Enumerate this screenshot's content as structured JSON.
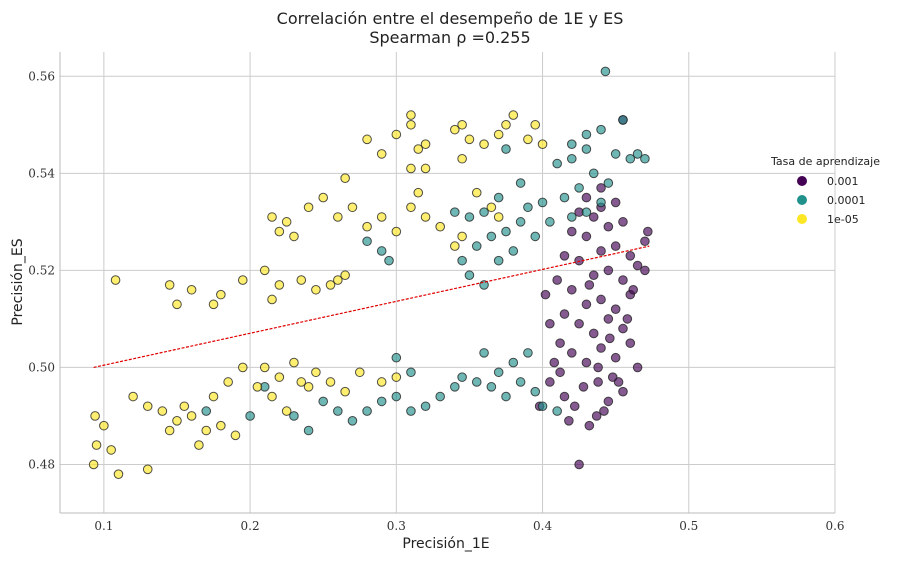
{
  "chart_data": {
    "type": "scatter",
    "title": "Correlación entre el desempeño de 1E y ES",
    "subtitle": "Spearman ρ =0.255",
    "xlabel": "Precisión_1E",
    "ylabel": "Precisión_ES",
    "xlim": [
      0.07,
      0.6
    ],
    "ylim": [
      0.47,
      0.565
    ],
    "xticks": [
      0.1,
      0.2,
      0.3,
      0.4,
      0.5,
      0.6
    ],
    "xtick_labels": [
      "0.1",
      "0.2",
      "0.3",
      "0.4",
      "0.5",
      "0.6"
    ],
    "yticks": [
      0.48,
      0.5,
      0.52,
      0.54,
      0.56
    ],
    "ytick_labels": [
      "0.48",
      "0.50",
      "0.52",
      "0.54",
      "0.56"
    ],
    "grid": true,
    "legend": {
      "title": "Tasa de aprendizaje",
      "placement": "right"
    },
    "trendline": {
      "color": "#e00000",
      "style": "dashed",
      "x": [
        0.093,
        0.473
      ],
      "y": [
        0.5,
        0.525
      ]
    },
    "series": [
      {
        "name": "0.001",
        "color": "#440154",
        "points": [
          [
            0.425,
            0.48
          ],
          [
            0.432,
            0.488
          ],
          [
            0.437,
            0.49
          ],
          [
            0.422,
            0.492
          ],
          [
            0.445,
            0.493
          ],
          [
            0.455,
            0.495
          ],
          [
            0.438,
            0.497
          ],
          [
            0.428,
            0.496
          ],
          [
            0.415,
            0.494
          ],
          [
            0.405,
            0.497
          ],
          [
            0.398,
            0.492
          ],
          [
            0.412,
            0.499
          ],
          [
            0.42,
            0.503
          ],
          [
            0.43,
            0.501
          ],
          [
            0.44,
            0.504
          ],
          [
            0.45,
            0.502
          ],
          [
            0.46,
            0.505
          ],
          [
            0.465,
            0.5
          ],
          [
            0.435,
            0.507
          ],
          [
            0.425,
            0.509
          ],
          [
            0.445,
            0.51
          ],
          [
            0.455,
            0.508
          ],
          [
            0.415,
            0.511
          ],
          [
            0.405,
            0.509
          ],
          [
            0.43,
            0.513
          ],
          [
            0.44,
            0.514
          ],
          [
            0.45,
            0.512
          ],
          [
            0.46,
            0.515
          ],
          [
            0.42,
            0.516
          ],
          [
            0.41,
            0.518
          ],
          [
            0.435,
            0.519
          ],
          [
            0.445,
            0.52
          ],
          [
            0.455,
            0.518
          ],
          [
            0.465,
            0.521
          ],
          [
            0.425,
            0.522
          ],
          [
            0.415,
            0.523
          ],
          [
            0.44,
            0.524
          ],
          [
            0.45,
            0.525
          ],
          [
            0.46,
            0.523
          ],
          [
            0.47,
            0.526
          ],
          [
            0.43,
            0.527
          ],
          [
            0.42,
            0.528
          ],
          [
            0.445,
            0.529
          ],
          [
            0.455,
            0.53
          ],
          [
            0.435,
            0.531
          ],
          [
            0.425,
            0.532
          ],
          [
            0.44,
            0.533
          ],
          [
            0.45,
            0.534
          ],
          [
            0.43,
            0.535
          ],
          [
            0.44,
            0.537
          ],
          [
            0.455,
            0.551
          ],
          [
            0.47,
            0.52
          ],
          [
            0.472,
            0.528
          ],
          [
            0.412,
            0.505
          ],
          [
            0.402,
            0.515
          ],
          [
            0.438,
            0.5
          ],
          [
            0.448,
            0.498
          ],
          [
            0.458,
            0.51
          ],
          [
            0.462,
            0.516
          ],
          [
            0.418,
            0.489
          ],
          [
            0.442,
            0.491
          ],
          [
            0.452,
            0.497
          ],
          [
            0.408,
            0.501
          ],
          [
            0.432,
            0.517
          ],
          [
            0.446,
            0.506
          ]
        ]
      },
      {
        "name": "0.0001",
        "color": "#21918c",
        "points": [
          [
            0.443,
            0.561
          ],
          [
            0.455,
            0.551
          ],
          [
            0.44,
            0.549
          ],
          [
            0.43,
            0.545
          ],
          [
            0.42,
            0.543
          ],
          [
            0.45,
            0.544
          ],
          [
            0.46,
            0.543
          ],
          [
            0.465,
            0.544
          ],
          [
            0.47,
            0.543
          ],
          [
            0.41,
            0.542
          ],
          [
            0.435,
            0.54
          ],
          [
            0.445,
            0.538
          ],
          [
            0.425,
            0.537
          ],
          [
            0.415,
            0.535
          ],
          [
            0.4,
            0.534
          ],
          [
            0.39,
            0.533
          ],
          [
            0.385,
            0.53
          ],
          [
            0.375,
            0.528
          ],
          [
            0.365,
            0.527
          ],
          [
            0.355,
            0.525
          ],
          [
            0.345,
            0.522
          ],
          [
            0.35,
            0.519
          ],
          [
            0.36,
            0.517
          ],
          [
            0.37,
            0.522
          ],
          [
            0.38,
            0.524
          ],
          [
            0.395,
            0.527
          ],
          [
            0.405,
            0.53
          ],
          [
            0.42,
            0.531
          ],
          [
            0.43,
            0.532
          ],
          [
            0.44,
            0.534
          ],
          [
            0.28,
            0.526
          ],
          [
            0.29,
            0.524
          ],
          [
            0.295,
            0.522
          ],
          [
            0.34,
            0.532
          ],
          [
            0.35,
            0.531
          ],
          [
            0.36,
            0.532
          ],
          [
            0.365,
            0.496
          ],
          [
            0.375,
            0.494
          ],
          [
            0.385,
            0.497
          ],
          [
            0.395,
            0.495
          ],
          [
            0.4,
            0.492
          ],
          [
            0.41,
            0.491
          ],
          [
            0.38,
            0.501
          ],
          [
            0.37,
            0.499
          ],
          [
            0.36,
            0.503
          ],
          [
            0.355,
            0.497
          ],
          [
            0.345,
            0.498
          ],
          [
            0.34,
            0.496
          ],
          [
            0.33,
            0.494
          ],
          [
            0.32,
            0.492
          ],
          [
            0.31,
            0.491
          ],
          [
            0.3,
            0.494
          ],
          [
            0.29,
            0.493
          ],
          [
            0.28,
            0.491
          ],
          [
            0.27,
            0.489
          ],
          [
            0.26,
            0.491
          ],
          [
            0.25,
            0.493
          ],
          [
            0.24,
            0.487
          ],
          [
            0.23,
            0.49
          ],
          [
            0.21,
            0.496
          ],
          [
            0.2,
            0.49
          ],
          [
            0.17,
            0.491
          ],
          [
            0.3,
            0.502
          ],
          [
            0.31,
            0.499
          ],
          [
            0.39,
            0.503
          ],
          [
            0.385,
            0.538
          ],
          [
            0.37,
            0.535
          ],
          [
            0.375,
            0.545
          ],
          [
            0.42,
            0.546
          ],
          [
            0.43,
            0.548
          ]
        ]
      },
      {
        "name": "1e-05",
        "color": "#fde725",
        "points": [
          [
            0.093,
            0.48
          ],
          [
            0.11,
            0.478
          ],
          [
            0.13,
            0.479
          ],
          [
            0.095,
            0.484
          ],
          [
            0.1,
            0.488
          ],
          [
            0.105,
            0.483
          ],
          [
            0.094,
            0.49
          ],
          [
            0.12,
            0.494
          ],
          [
            0.13,
            0.492
          ],
          [
            0.14,
            0.491
          ],
          [
            0.15,
            0.489
          ],
          [
            0.16,
            0.49
          ],
          [
            0.17,
            0.487
          ],
          [
            0.18,
            0.488
          ],
          [
            0.19,
            0.486
          ],
          [
            0.145,
            0.487
          ],
          [
            0.155,
            0.492
          ],
          [
            0.165,
            0.484
          ],
          [
            0.175,
            0.494
          ],
          [
            0.185,
            0.497
          ],
          [
            0.195,
            0.5
          ],
          [
            0.205,
            0.496
          ],
          [
            0.215,
            0.494
          ],
          [
            0.225,
            0.491
          ],
          [
            0.235,
            0.497
          ],
          [
            0.245,
            0.499
          ],
          [
            0.255,
            0.497
          ],
          [
            0.265,
            0.495
          ],
          [
            0.275,
            0.499
          ],
          [
            0.21,
            0.5
          ],
          [
            0.22,
            0.498
          ],
          [
            0.23,
            0.501
          ],
          [
            0.24,
            0.496
          ],
          [
            0.29,
            0.497
          ],
          [
            0.3,
            0.498
          ],
          [
            0.108,
            0.518
          ],
          [
            0.145,
            0.517
          ],
          [
            0.15,
            0.513
          ],
          [
            0.16,
            0.516
          ],
          [
            0.175,
            0.513
          ],
          [
            0.18,
            0.515
          ],
          [
            0.195,
            0.518
          ],
          [
            0.21,
            0.52
          ],
          [
            0.215,
            0.514
          ],
          [
            0.22,
            0.517
          ],
          [
            0.235,
            0.518
          ],
          [
            0.245,
            0.516
          ],
          [
            0.255,
            0.517
          ],
          [
            0.26,
            0.518
          ],
          [
            0.265,
            0.519
          ],
          [
            0.215,
            0.531
          ],
          [
            0.22,
            0.528
          ],
          [
            0.225,
            0.53
          ],
          [
            0.23,
            0.527
          ],
          [
            0.24,
            0.533
          ],
          [
            0.25,
            0.535
          ],
          [
            0.26,
            0.531
          ],
          [
            0.27,
            0.533
          ],
          [
            0.28,
            0.529
          ],
          [
            0.29,
            0.531
          ],
          [
            0.3,
            0.528
          ],
          [
            0.31,
            0.533
          ],
          [
            0.315,
            0.536
          ],
          [
            0.32,
            0.531
          ],
          [
            0.33,
            0.529
          ],
          [
            0.265,
            0.539
          ],
          [
            0.28,
            0.547
          ],
          [
            0.29,
            0.544
          ],
          [
            0.3,
            0.548
          ],
          [
            0.31,
            0.55
          ],
          [
            0.31,
            0.552
          ],
          [
            0.315,
            0.545
          ],
          [
            0.32,
            0.546
          ],
          [
            0.34,
            0.549
          ],
          [
            0.345,
            0.55
          ],
          [
            0.35,
            0.547
          ],
          [
            0.36,
            0.546
          ],
          [
            0.37,
            0.548
          ],
          [
            0.375,
            0.55
          ],
          [
            0.38,
            0.552
          ],
          [
            0.39,
            0.547
          ],
          [
            0.395,
            0.55
          ],
          [
            0.4,
            0.546
          ],
          [
            0.34,
            0.525
          ],
          [
            0.345,
            0.527
          ],
          [
            0.355,
            0.536
          ],
          [
            0.365,
            0.533
          ],
          [
            0.37,
            0.531
          ],
          [
            0.31,
            0.541
          ],
          [
            0.32,
            0.541
          ],
          [
            0.345,
            0.543
          ]
        ]
      }
    ]
  }
}
